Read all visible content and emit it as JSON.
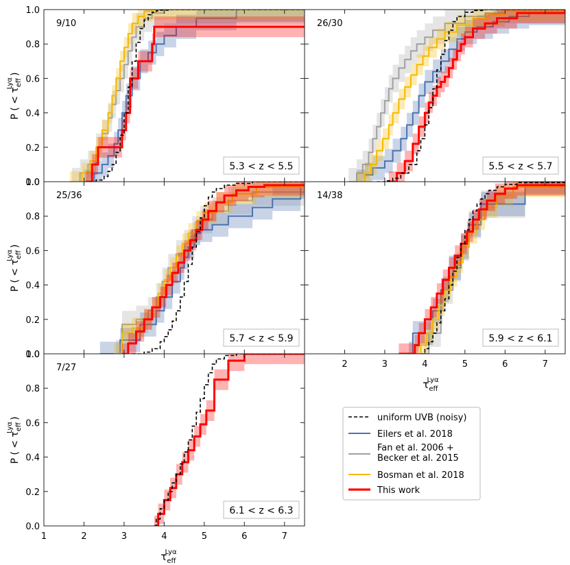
{
  "chart_data": {
    "type": "line",
    "description": "Cumulative distribution functions (step plots) of effective Lyman-alpha optical depth in five redshift bins",
    "x_label_main": "τ",
    "x_label_sub": "eff",
    "x_label_sup": "Lyα",
    "y_label_main": "P ( < τ",
    "y_label_sub": "eff",
    "y_label_sup": "Lyα",
    "y_label_close": ")",
    "xlim": [
      1,
      7.5
    ],
    "ylim": [
      0,
      1
    ],
    "x_ticks": [
      "1",
      "2",
      "3",
      "4",
      "5",
      "6",
      "7"
    ],
    "y_ticks": [
      "0.0",
      "0.2",
      "0.4",
      "0.6",
      "0.8",
      "1.0"
    ],
    "x_ticks_right_bottom": [
      "2",
      "3",
      "4",
      "5",
      "6",
      "7"
    ],
    "colors": {
      "uniform": "#000000",
      "eilers": "#4c72b0",
      "fan": "#a0a0a0",
      "bosman": "#f5b800",
      "this_work": "#ff0000",
      "bg": "#ffffff",
      "axes": "#222222"
    },
    "legend": [
      {
        "key": "uniform",
        "label": "uniform UVB (noisy)",
        "style": "dashed"
      },
      {
        "key": "eilers",
        "label": "Eilers et al. 2018",
        "style": "solid"
      },
      {
        "key": "fan",
        "label": "Fan et al. 2006 +",
        "label2": "Becker et al. 2015",
        "style": "solid"
      },
      {
        "key": "bosman",
        "label": "Bosman et al. 2018",
        "style": "solid"
      },
      {
        "key": "this_work",
        "label": "This work",
        "style": "thick"
      }
    ],
    "panels": [
      {
        "count_label": "9/10",
        "z_label": "5.3 < z < 5.5",
        "series": {
          "uniform": {
            "x": [
              2.15,
              2.3,
              2.5,
              2.6,
              2.7,
              2.8,
              2.9,
              3.0,
              3.1,
              3.2,
              3.3,
              3.4,
              3.5,
              3.6,
              3.7,
              3.8,
              3.9,
              4.1,
              4.4,
              7.5
            ],
            "y": [
              0,
              0.01,
              0.03,
              0.06,
              0.1,
              0.17,
              0.27,
              0.4,
              0.55,
              0.7,
              0.81,
              0.89,
              0.94,
              0.97,
              0.985,
              0.993,
              0.997,
              1,
              1,
              1
            ]
          },
          "eilers": {
            "x": [
              2.0,
              2.25,
              2.45,
              2.6,
              2.75,
              2.85,
              2.95,
              3.05,
              3.2,
              3.4,
              3.6,
              3.8,
              4.0,
              4.3,
              4.8,
              5.8,
              7.5
            ],
            "y": [
              0,
              0.05,
              0.1,
              0.15,
              0.22,
              0.3,
              0.4,
              0.5,
              0.6,
              0.7,
              0.75,
              0.8,
              0.85,
              0.9,
              0.95,
              1,
              1
            ]
          },
          "fan": {
            "x": [
              1.7,
              1.9,
              2.1,
              2.3,
              2.45,
              2.6,
              2.7,
              2.8,
              2.9,
              3.0,
              3.1,
              3.2,
              3.3,
              3.5,
              3.7,
              4.0,
              7.5
            ],
            "y": [
              0,
              0.05,
              0.1,
              0.2,
              0.28,
              0.37,
              0.45,
              0.53,
              0.6,
              0.68,
              0.76,
              0.84,
              0.9,
              0.95,
              0.98,
              1,
              1
            ]
          },
          "bosman": {
            "x": [
              1.65,
              1.95,
              2.15,
              2.3,
              2.45,
              2.6,
              2.7,
              2.8,
              2.9,
              3.0,
              3.1,
              3.2,
              3.35,
              3.5,
              3.7,
              7.5
            ],
            "y": [
              0,
              0.05,
              0.12,
              0.2,
              0.3,
              0.4,
              0.5,
              0.6,
              0.7,
              0.78,
              0.86,
              0.92,
              0.96,
              0.99,
              1,
              1
            ]
          },
          "this_work": {
            "x": [
              2.05,
              2.2,
              2.35,
              2.95,
              3.05,
              3.15,
              3.35,
              3.7,
              3.75,
              7.5
            ],
            "y": [
              0,
              0.1,
              0.2,
              0.3,
              0.4,
              0.6,
              0.7,
              0.8,
              0.9,
              0.9
            ]
          }
        }
      },
      {
        "count_label": "26/30",
        "z_label": "5.5 < z < 5.7",
        "series": {
          "uniform": {
            "x": [
              2.8,
              3.0,
              3.2,
              3.4,
              3.6,
              3.8,
              3.9,
              4.0,
              4.1,
              4.2,
              4.3,
              4.4,
              4.5,
              4.6,
              4.7,
              4.8,
              5.0,
              5.2,
              5.5,
              7.5
            ],
            "y": [
              0,
              0.005,
              0.02,
              0.05,
              0.1,
              0.18,
              0.25,
              0.33,
              0.43,
              0.54,
              0.65,
              0.74,
              0.82,
              0.88,
              0.93,
              0.96,
              0.985,
              0.995,
              1,
              1
            ]
          },
          "eilers": {
            "x": [
              2.3,
              2.5,
              2.7,
              3.0,
              3.2,
              3.4,
              3.55,
              3.7,
              3.85,
              4.0,
              4.2,
              4.4,
              4.6,
              4.8,
              5.0,
              5.3,
              5.7,
              6.1,
              6.6,
              7.5
            ],
            "y": [
              0,
              0.04,
              0.08,
              0.12,
              0.18,
              0.25,
              0.33,
              0.4,
              0.5,
              0.58,
              0.64,
              0.7,
              0.77,
              0.83,
              0.87,
              0.9,
              0.93,
              0.96,
              0.98,
              1
            ]
          },
          "fan": {
            "x": [
              2.1,
              2.3,
              2.45,
              2.6,
              2.7,
              2.8,
              2.9,
              3.0,
              3.1,
              3.2,
              3.35,
              3.5,
              3.65,
              3.8,
              4.0,
              4.2,
              4.5,
              5.0,
              5.5,
              6.0,
              7.5
            ],
            "y": [
              0,
              0.05,
              0.1,
              0.17,
              0.25,
              0.32,
              0.4,
              0.47,
              0.54,
              0.6,
              0.66,
              0.71,
              0.76,
              0.8,
              0.84,
              0.88,
              0.92,
              0.96,
              0.98,
              1,
              1
            ]
          },
          "bosman": {
            "x": [
              2.3,
              2.5,
              2.65,
              2.8,
              2.95,
              3.1,
              3.2,
              3.35,
              3.5,
              3.65,
              3.8,
              3.95,
              4.1,
              4.3,
              4.5,
              4.8,
              5.2,
              5.6,
              6.0,
              7.5
            ],
            "y": [
              0,
              0.05,
              0.1,
              0.18,
              0.25,
              0.33,
              0.4,
              0.48,
              0.55,
              0.62,
              0.68,
              0.73,
              0.78,
              0.83,
              0.87,
              0.91,
              0.95,
              0.97,
              0.99,
              1
            ]
          },
          "this_work": {
            "x": [
              3.1,
              3.3,
              3.5,
              3.7,
              3.85,
              4.0,
              4.1,
              4.2,
              4.3,
              4.4,
              4.5,
              4.6,
              4.7,
              4.8,
              4.9,
              5.0,
              5.2,
              5.5,
              5.8,
              6.3,
              7.5
            ],
            "y": [
              0,
              0.05,
              0.12,
              0.22,
              0.32,
              0.4,
              0.46,
              0.5,
              0.55,
              0.58,
              0.61,
              0.66,
              0.71,
              0.76,
              0.8,
              0.84,
              0.89,
              0.92,
              0.95,
              0.98,
              1
            ]
          }
        }
      },
      {
        "count_label": "25/36",
        "z_label": "5.7 < z < 5.9",
        "series": {
          "uniform": {
            "x": [
              3.2,
              3.5,
              3.7,
              3.9,
              4.0,
              4.1,
              4.2,
              4.3,
              4.4,
              4.5,
              4.6,
              4.7,
              4.8,
              4.9,
              5.0,
              5.1,
              5.2,
              5.3,
              5.5,
              5.8,
              6.2,
              7.5
            ],
            "y": [
              0,
              0.01,
              0.03,
              0.07,
              0.1,
              0.14,
              0.19,
              0.25,
              0.33,
              0.42,
              0.52,
              0.62,
              0.71,
              0.79,
              0.86,
              0.91,
              0.94,
              0.96,
              0.98,
              0.99,
              1,
              1
            ]
          },
          "eilers": {
            "x": [
              2.4,
              2.9,
              3.4,
              3.8,
              4.0,
              4.2,
              4.4,
              4.5,
              4.6,
              4.75,
              4.9,
              5.2,
              5.6,
              6.2,
              6.7,
              7.4,
              7.5
            ],
            "y": [
              0,
              0.08,
              0.17,
              0.25,
              0.33,
              0.42,
              0.5,
              0.56,
              0.62,
              0.7,
              0.72,
              0.75,
              0.8,
              0.85,
              0.9,
              0.97,
              0.97
            ]
          },
          "fan": {
            "x": [
              2.8,
              2.95,
              3.3,
              3.6,
              3.8,
              3.95,
              4.1,
              4.3,
              4.5,
              4.7,
              4.9,
              5.2,
              5.6,
              6.2,
              7.5
            ],
            "y": [
              0,
              0.17,
              0.2,
              0.25,
              0.33,
              0.42,
              0.5,
              0.58,
              0.64,
              0.72,
              0.78,
              0.83,
              0.89,
              0.94,
              0.94
            ]
          },
          "bosman": {
            "x": [
              2.75,
              2.95,
              3.2,
              3.5,
              3.7,
              3.85,
              4.0,
              4.15,
              4.3,
              4.45,
              4.6,
              4.8,
              5.0,
              5.3,
              5.7,
              6.3,
              7.5
            ],
            "y": [
              0,
              0.12,
              0.15,
              0.2,
              0.27,
              0.35,
              0.43,
              0.5,
              0.57,
              0.64,
              0.7,
              0.77,
              0.82,
              0.88,
              0.93,
              0.97,
              0.97
            ]
          },
          "this_work": {
            "x": [
              2.95,
              3.1,
              3.3,
              3.5,
              3.7,
              3.9,
              4.05,
              4.2,
              4.35,
              4.5,
              4.65,
              4.8,
              4.95,
              5.1,
              5.3,
              5.5,
              5.8,
              6.1,
              6.5,
              7.5
            ],
            "y": [
              0,
              0.06,
              0.13,
              0.2,
              0.27,
              0.33,
              0.4,
              0.47,
              0.53,
              0.6,
              0.66,
              0.72,
              0.78,
              0.83,
              0.88,
              0.92,
              0.95,
              0.97,
              0.98,
              0.98
            ]
          }
        }
      },
      {
        "count_label": "14/38",
        "z_label": "5.9 < z < 6.1",
        "series": {
          "uniform": {
            "x": [
              3.9,
              4.0,
              4.1,
              4.2,
              4.3,
              4.4,
              4.5,
              4.6,
              4.7,
              4.8,
              4.9,
              5.0,
              5.1,
              5.2,
              5.3,
              5.4,
              5.5,
              5.6,
              5.8,
              6.0,
              6.3,
              7.5
            ],
            "y": [
              0,
              0.03,
              0.07,
              0.12,
              0.18,
              0.25,
              0.32,
              0.4,
              0.48,
              0.56,
              0.64,
              0.72,
              0.78,
              0.83,
              0.87,
              0.9,
              0.93,
              0.95,
              0.97,
              0.985,
              0.995,
              0.995
            ]
          },
          "eilers": {
            "x": [
              3.6,
              3.7,
              4.2,
              4.4,
              4.6,
              4.9,
              5.1,
              5.4,
              5.5,
              5.8,
              6.5,
              7.5
            ],
            "y": [
              0,
              0.12,
              0.25,
              0.37,
              0.5,
              0.62,
              0.75,
              0.87,
              0.87,
              0.87,
              1,
              1
            ]
          },
          "fan": {
            "x": [
              4.0,
              4.1,
              4.4,
              4.45,
              4.7,
              4.9,
              5.1,
              5.4,
              5.5,
              5.8,
              6.5,
              7.5
            ],
            "y": [
              0,
              0.12,
              0.25,
              0.37,
              0.5,
              0.62,
              0.75,
              0.87,
              0.87,
              0.87,
              1,
              1
            ]
          },
          "bosman": {
            "x": [
              3.7,
              3.9,
              4.05,
              4.2,
              4.35,
              4.5,
              4.65,
              4.8,
              4.95,
              5.1,
              5.3,
              5.5,
              5.8,
              6.2,
              7.5
            ],
            "y": [
              0,
              0.05,
              0.12,
              0.2,
              0.28,
              0.37,
              0.45,
              0.53,
              0.62,
              0.7,
              0.78,
              0.85,
              0.92,
              0.97,
              0.97
            ]
          },
          "this_work": {
            "x": [
              3.35,
              3.75,
              3.85,
              4.0,
              4.15,
              4.3,
              4.45,
              4.6,
              4.75,
              4.9,
              5.05,
              5.2,
              5.35,
              5.55,
              5.75,
              6.0,
              6.3,
              7.5
            ],
            "y": [
              0,
              0.05,
              0.12,
              0.2,
              0.27,
              0.35,
              0.43,
              0.5,
              0.57,
              0.64,
              0.71,
              0.78,
              0.84,
              0.89,
              0.93,
              0.96,
              0.98,
              0.98
            ]
          }
        }
      },
      {
        "count_label": "7/27",
        "z_label": "6.1 < z < 6.3",
        "series": {
          "uniform": {
            "x": [
              3.75,
              3.8,
              3.9,
              4.0,
              4.1,
              4.2,
              4.3,
              4.4,
              4.5,
              4.6,
              4.7,
              4.8,
              4.9,
              5.0,
              5.1,
              5.2,
              5.3,
              5.5,
              5.8,
              6.2,
              7.5
            ],
            "y": [
              0,
              0.04,
              0.1,
              0.15,
              0.2,
              0.25,
              0.3,
              0.36,
              0.43,
              0.5,
              0.58,
              0.66,
              0.74,
              0.82,
              0.89,
              0.94,
              0.97,
              0.99,
              1,
              1,
              1
            ]
          },
          "this_work": {
            "x": [
              3.75,
              3.85,
              4.0,
              4.15,
              4.3,
              4.45,
              4.6,
              4.75,
              4.9,
              5.05,
              5.25,
              5.6,
              6.0,
              7.5
            ],
            "y": [
              0,
              0.07,
              0.15,
              0.22,
              0.3,
              0.37,
              0.44,
              0.52,
              0.59,
              0.67,
              0.85,
              0.96,
              1,
              1
            ]
          }
        }
      }
    ]
  }
}
